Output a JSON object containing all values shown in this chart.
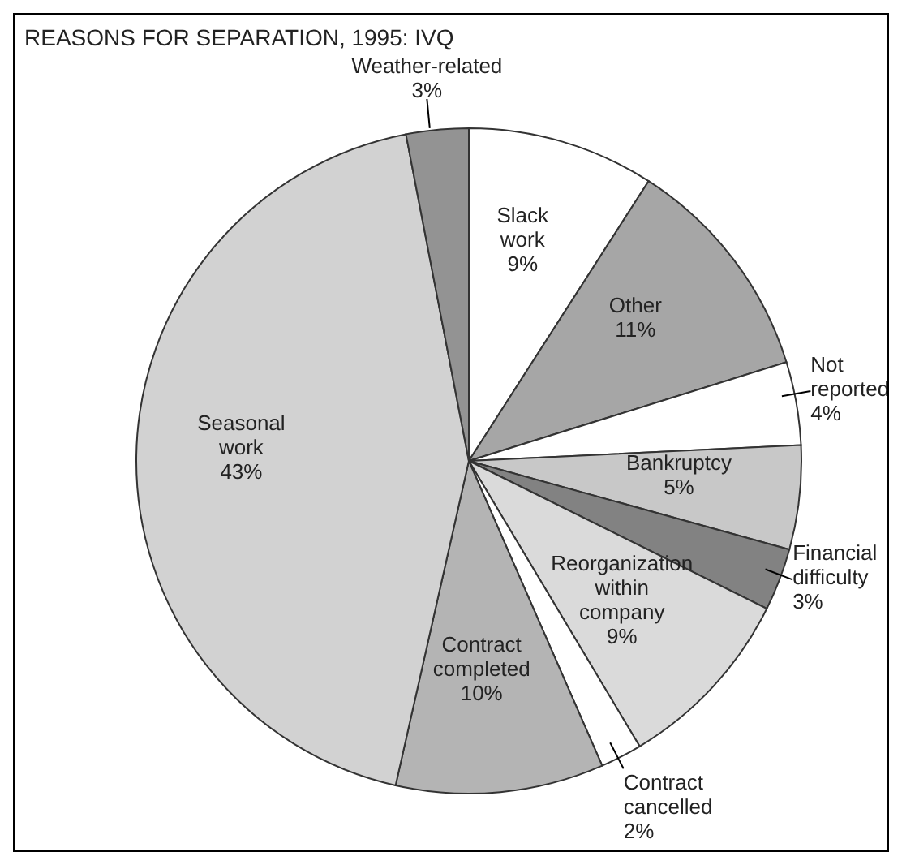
{
  "chart_data": {
    "type": "pie",
    "title": "REASONS FOR SEPARATION, 1995: IVQ",
    "categories": [
      "Slack work",
      "Other",
      "Not reported",
      "Bankruptcy",
      "Financial difficulty",
      "Reorganization within company",
      "Contract cancelled",
      "Contract completed",
      "Seasonal work",
      "Weather-related"
    ],
    "values": [
      9,
      11,
      4,
      5,
      3,
      9,
      2,
      10,
      43,
      3
    ],
    "colors": [
      "#ffffff",
      "#a6a6a6",
      "#ffffff",
      "#c8c8c8",
      "#828282",
      "#dadada",
      "#ffffff",
      "#b4b4b4",
      "#d2d2d2",
      "#939393"
    ],
    "value_labels": [
      "9%",
      "11%",
      "4%",
      "5%",
      "3%",
      "9%",
      "2%",
      "10%",
      "43%",
      "3%"
    ]
  }
}
